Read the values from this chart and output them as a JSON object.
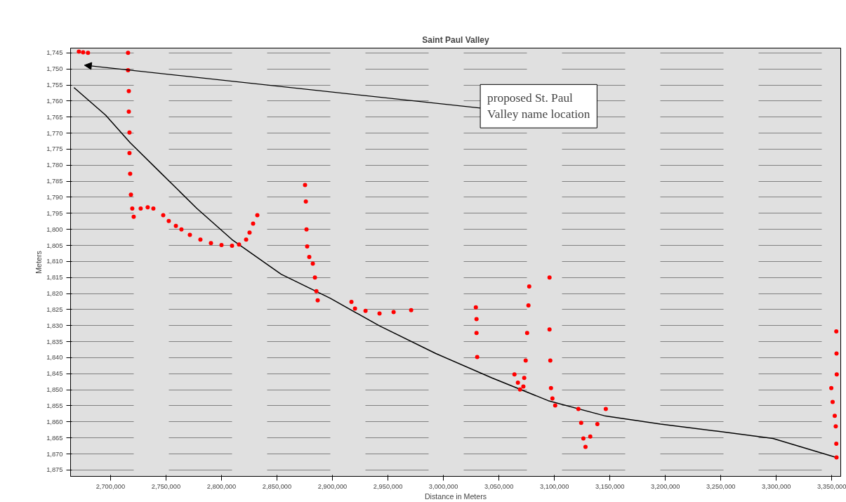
{
  "chart_data": {
    "type": "scatter",
    "title": "Saint Paul Valley",
    "xlabel": "Distance in Meters",
    "ylabel": "Meters",
    "xlim": [
      2664000,
      3358000
    ],
    "ylim": [
      1877,
      1743.5
    ],
    "xticks": [
      {
        "value": 2700000,
        "label": "2,700,000"
      },
      {
        "value": 2750000,
        "label": "2,750,000"
      },
      {
        "value": 2800000,
        "label": "2,800,000"
      },
      {
        "value": 2850000,
        "label": "2,850,000"
      },
      {
        "value": 2900000,
        "label": "2,900,000"
      },
      {
        "value": 2950000,
        "label": "2,950,000"
      },
      {
        "value": 3000000,
        "label": "3,000,000"
      },
      {
        "value": 3050000,
        "label": "3,050,000"
      },
      {
        "value": 3100000,
        "label": "3,100,000"
      },
      {
        "value": 3150000,
        "label": "3,150,000"
      },
      {
        "value": 3200000,
        "label": "3,200,000"
      },
      {
        "value": 3250000,
        "label": "3,250,000"
      },
      {
        "value": 3300000,
        "label": "3,300,000"
      },
      {
        "value": 3350000,
        "label": "3,350,000"
      }
    ],
    "yticks": [
      {
        "value": 1745,
        "label": "1,745"
      },
      {
        "value": 1750,
        "label": "1,750"
      },
      {
        "value": 1755,
        "label": "1,755"
      },
      {
        "value": 1760,
        "label": "1,760"
      },
      {
        "value": 1765,
        "label": "1,765"
      },
      {
        "value": 1770,
        "label": "1,770"
      },
      {
        "value": 1775,
        "label": "1,775"
      },
      {
        "value": 1780,
        "label": "1,780"
      },
      {
        "value": 1785,
        "label": "1,785"
      },
      {
        "value": 1790,
        "label": "1,790"
      },
      {
        "value": 1795,
        "label": "1,795"
      },
      {
        "value": 1800,
        "label": "1,800"
      },
      {
        "value": 1805,
        "label": "1,805"
      },
      {
        "value": 1810,
        "label": "1,810"
      },
      {
        "value": 1815,
        "label": "1,815"
      },
      {
        "value": 1820,
        "label": "1,820"
      },
      {
        "value": 1825,
        "label": "1,825"
      },
      {
        "value": 1830,
        "label": "1,830"
      },
      {
        "value": 1835,
        "label": "1,835"
      },
      {
        "value": 1840,
        "label": "1,840"
      },
      {
        "value": 1845,
        "label": "1,845"
      },
      {
        "value": 1850,
        "label": "1,850"
      },
      {
        "value": 1855,
        "label": "1,855"
      },
      {
        "value": 1860,
        "label": "1,860"
      },
      {
        "value": 1865,
        "label": "1,865"
      },
      {
        "value": 1870,
        "label": "1,870"
      },
      {
        "value": 1875,
        "label": "1,875"
      }
    ],
    "grid": "y",
    "marker": "circle",
    "series": [
      {
        "color": "#ff0000",
        "x": [
          2671500,
          2675300,
          2679700,
          2715800,
          2715800,
          2716500,
          2716500,
          2717100,
          2717100,
          2717700,
          2718400,
          2719600,
          2720900,
          2727200,
          2733500,
          2738600,
          2747500,
          2752500,
          2758900,
          2763900,
          2771500,
          2781000,
          2790500,
          2800000,
          2809500,
          2815800,
          2822200,
          2825300,
          2828500,
          2832300,
          2875300,
          2876000,
          2876600,
          2877200,
          2879100,
          2882300,
          2884200,
          2885500,
          2886700,
          2917100,
          2920300,
          2929800,
          2942400,
          2955100,
          2970900,
          3029200,
          3029800,
          3029800,
          3030400,
          3064000,
          3067100,
          3069000,
          3072000,
          3072800,
          3074100,
          3075400,
          3076600,
          3077300,
          3095600,
          3095600,
          3096300,
          3096900,
          3098200,
          3100700,
          3121600,
          3124100,
          3126100,
          3128000,
          3132300,
          3138700,
          3146300,
          3349500,
          3350700,
          3352600,
          3353500,
          3354000,
          3354200,
          3354000,
          3354400,
          3354200
        ],
        "values": [
          1744.6,
          1744.8,
          1745.0,
          1745.0,
          1750.4,
          1756.9,
          1763.3,
          1769.8,
          1776.2,
          1782.7,
          1789.2,
          1793.5,
          1796.1,
          1793.5,
          1793.1,
          1793.5,
          1795.6,
          1797.4,
          1798.9,
          1800.0,
          1801.7,
          1803.2,
          1804.3,
          1804.9,
          1805.1,
          1804.7,
          1803.2,
          1801.0,
          1798.2,
          1795.6,
          1786.2,
          1791.3,
          1800.0,
          1805.3,
          1808.6,
          1810.7,
          1815.0,
          1819.3,
          1822.1,
          1822.6,
          1824.7,
          1825.4,
          1826.2,
          1825.8,
          1825.2,
          1824.3,
          1828.0,
          1832.3,
          1839.8,
          1845.2,
          1847.8,
          1849.9,
          1849.0,
          1846.3,
          1840.9,
          1832.3,
          1823.7,
          1817.8,
          1815.0,
          1831.2,
          1840.9,
          1849.5,
          1852.7,
          1854.9,
          1856.0,
          1860.3,
          1865.2,
          1867.8,
          1864.6,
          1860.7,
          1856.0,
          1849.5,
          1853.8,
          1858.1,
          1861.4,
          1866.8,
          1871.1,
          1831.8,
          1845.2,
          1838.7
        ]
      },
      {
        "type": "line",
        "color": "#000000",
        "marker": "none",
        "x": [
          2667100,
          2695600,
          2717700,
          2746200,
          2777900,
          2809500,
          2853800,
          2898100,
          2942400,
          2993100,
          3043700,
          3094400,
          3145000,
          3195600,
          3246300,
          3296900,
          3353900
        ],
        "values": [
          1755.8,
          1764.4,
          1773.0,
          1782.7,
          1793.5,
          1803.2,
          1814.0,
          1821.5,
          1830.1,
          1838.7,
          1846.3,
          1853.4,
          1858.1,
          1860.7,
          1862.9,
          1865.2,
          1871.1
        ]
      }
    ],
    "annotations": [
      "proposed St. Paul Valley name location"
    ]
  }
}
